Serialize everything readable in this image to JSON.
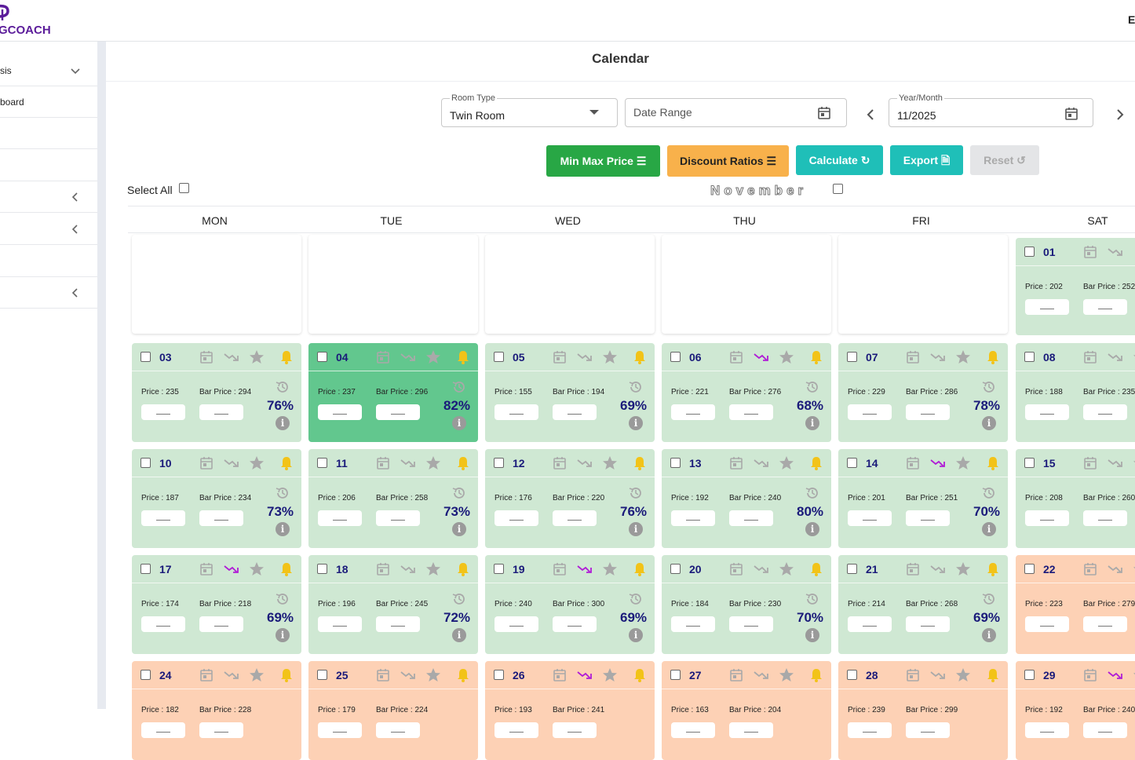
{
  "app": {
    "brand": "GCOACH",
    "user_initial": "E"
  },
  "sidebar": {
    "items": [
      {
        "label": "sis",
        "chevron": "down"
      },
      {
        "label": "board",
        "chevron": ""
      },
      {
        "label": "",
        "chevron": ""
      },
      {
        "label": "",
        "chevron": ""
      },
      {
        "label": "",
        "chevron": "left"
      },
      {
        "label": "",
        "chevron": "left"
      },
      {
        "label": "",
        "chevron": ""
      },
      {
        "label": "",
        "chevron": "left"
      }
    ]
  },
  "page": {
    "title": "Calendar"
  },
  "filters": {
    "room_type": {
      "label": "Room Type",
      "value": "Twin Room"
    },
    "date_range": {
      "placeholder": "Date Range"
    },
    "year_month": {
      "label": "Year/Month",
      "value": "11/2025"
    }
  },
  "buttons": {
    "min_max": "Min Max Price",
    "discount": "Discount Ratios",
    "calculate": "Calculate",
    "export": "Export",
    "reset": "Reset"
  },
  "colors": {
    "min_max": "#28a745",
    "discount": "#f8b14b",
    "calculate": "#1fbfb8",
    "export": "#1fbfb8",
    "reset": "#e4e5e7",
    "trend_active": "#b01cd6",
    "bell": "#f2c318"
  },
  "select_all": "Select All",
  "month": "November",
  "weekdays": [
    "MON",
    "TUE",
    "WED",
    "THU",
    "FRI",
    "SAT"
  ],
  "price_prefix": "Price : ",
  "bar_prefix": "Bar Price : ",
  "days": [
    {
      "day": "01",
      "price": "202",
      "bar": "252",
      "occupancy": "",
      "trend": false,
      "status": "green"
    },
    {
      "day": "03",
      "price": "235",
      "bar": "294",
      "occupancy": "76%",
      "trend": false,
      "status": "green"
    },
    {
      "day": "04",
      "price": "237",
      "bar": "296",
      "occupancy": "82%",
      "trend": false,
      "status": "selected"
    },
    {
      "day": "05",
      "price": "155",
      "bar": "194",
      "occupancy": "69%",
      "trend": false,
      "status": "green"
    },
    {
      "day": "06",
      "price": "221",
      "bar": "276",
      "occupancy": "68%",
      "trend": true,
      "status": "green"
    },
    {
      "day": "07",
      "price": "229",
      "bar": "286",
      "occupancy": "78%",
      "trend": false,
      "status": "green"
    },
    {
      "day": "08",
      "price": "188",
      "bar": "235",
      "occupancy": "",
      "trend": false,
      "status": "green"
    },
    {
      "day": "10",
      "price": "187",
      "bar": "234",
      "occupancy": "73%",
      "trend": false,
      "status": "green"
    },
    {
      "day": "11",
      "price": "206",
      "bar": "258",
      "occupancy": "73%",
      "trend": false,
      "status": "green"
    },
    {
      "day": "12",
      "price": "176",
      "bar": "220",
      "occupancy": "76%",
      "trend": false,
      "status": "green"
    },
    {
      "day": "13",
      "price": "192",
      "bar": "240",
      "occupancy": "80%",
      "trend": false,
      "status": "green"
    },
    {
      "day": "14",
      "price": "201",
      "bar": "251",
      "occupancy": "70%",
      "trend": true,
      "status": "green"
    },
    {
      "day": "15",
      "price": "208",
      "bar": "260",
      "occupancy": "",
      "trend": false,
      "status": "green"
    },
    {
      "day": "17",
      "price": "174",
      "bar": "218",
      "occupancy": "69%",
      "trend": true,
      "status": "green"
    },
    {
      "day": "18",
      "price": "196",
      "bar": "245",
      "occupancy": "72%",
      "trend": false,
      "status": "green"
    },
    {
      "day": "19",
      "price": "240",
      "bar": "300",
      "occupancy": "69%",
      "trend": true,
      "status": "green"
    },
    {
      "day": "20",
      "price": "184",
      "bar": "230",
      "occupancy": "70%",
      "trend": false,
      "status": "green"
    },
    {
      "day": "21",
      "price": "214",
      "bar": "268",
      "occupancy": "69%",
      "trend": false,
      "status": "green"
    },
    {
      "day": "22",
      "price": "223",
      "bar": "279",
      "occupancy": "",
      "trend": false,
      "status": "orange"
    },
    {
      "day": "24",
      "price": "182",
      "bar": "228",
      "occupancy": "",
      "trend": false,
      "status": "orange"
    },
    {
      "day": "25",
      "price": "179",
      "bar": "224",
      "occupancy": "",
      "trend": false,
      "status": "orange"
    },
    {
      "day": "26",
      "price": "193",
      "bar": "241",
      "occupancy": "",
      "trend": true,
      "status": "orange"
    },
    {
      "day": "27",
      "price": "163",
      "bar": "204",
      "occupancy": "",
      "trend": false,
      "status": "orange"
    },
    {
      "day": "28",
      "price": "239",
      "bar": "299",
      "occupancy": "",
      "trend": false,
      "status": "orange"
    },
    {
      "day": "29",
      "price": "192",
      "bar": "240",
      "occupancy": "",
      "trend": true,
      "status": "orange"
    }
  ]
}
